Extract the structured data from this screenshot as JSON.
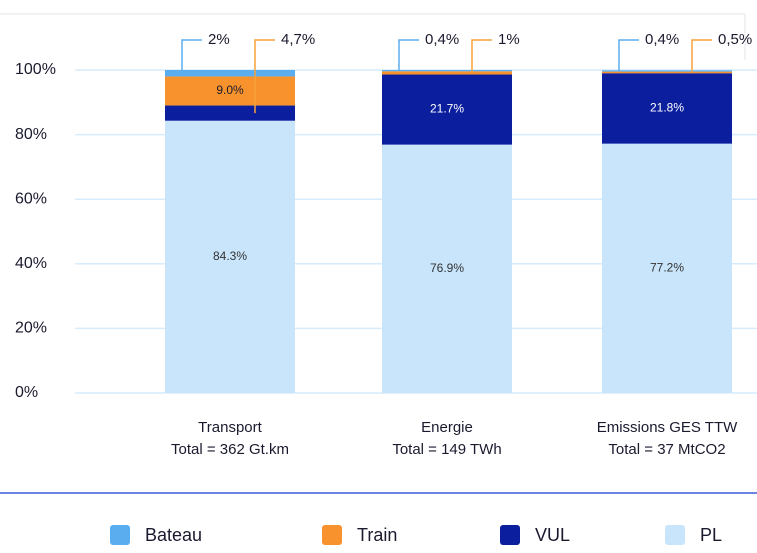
{
  "chart_data": {
    "type": "stacked_bar",
    "categories": [
      "Transport",
      "Energie",
      "Emissions GES TTW"
    ],
    "category_totals": [
      "Total = 362 Gt.km",
      "Total = 149 TWh",
      "Total = 37 MtCO2"
    ],
    "series": [
      {
        "name": "PL",
        "color": "#c8e5fb",
        "values": [
          84.3,
          76.9,
          77.2
        ],
        "value_labels": [
          "84.3%",
          "76.9%",
          "77.2%"
        ]
      },
      {
        "name": "VUL",
        "color": "#0b1e9e",
        "values": [
          4.7,
          21.7,
          21.8
        ],
        "value_labels": [
          "4,7%",
          "21.7%",
          "21.8%"
        ]
      },
      {
        "name": "Train",
        "color": "#f7922c",
        "values": [
          9.0,
          1,
          0.5
        ],
        "value_labels": [
          "9.0%",
          "1%",
          "0,5%"
        ]
      },
      {
        "name": "Bateau",
        "color": "#5aaeef",
        "values": [
          2,
          0.4,
          0.4
        ],
        "value_labels": [
          "2%",
          "0,4%",
          "0,4%"
        ]
      }
    ],
    "ylim": [
      0,
      100
    ],
    "yticks": [
      {
        "value": 0,
        "label": "0%"
      },
      {
        "value": 20,
        "label": "20%"
      },
      {
        "value": 40,
        "label": "40%"
      },
      {
        "value": 60,
        "label": "60%"
      },
      {
        "value": 80,
        "label": "80%"
      },
      {
        "value": 100,
        "label": "100%"
      }
    ],
    "grid": true,
    "legend": "bottom"
  }
}
